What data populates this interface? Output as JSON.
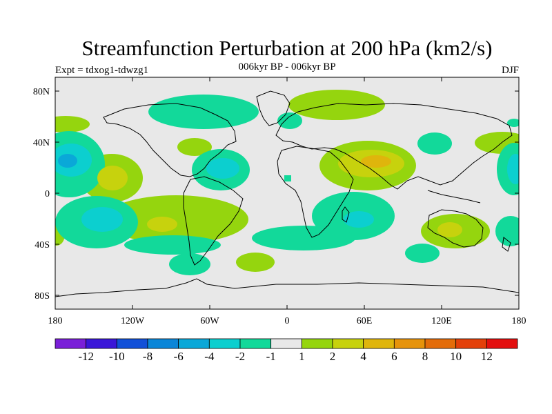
{
  "title": "Streamfunction Perturbation at 200 hPa (km2/s)",
  "subtitle": "006kyr BP - 006kyr BP",
  "left_label": "Expt = tdxog1-tdwzg1",
  "right_label": "DJF",
  "axes": {
    "lat_ticks": [
      "80N",
      "40N",
      "0",
      "40S",
      "80S"
    ],
    "lon_ticks": [
      "180",
      "120W",
      "60W",
      "0",
      "60E",
      "120E",
      "180"
    ]
  },
  "colorbar": {
    "colors": [
      "#7a1fd8",
      "#3a16d8",
      "#1150d8",
      "#0a86d8",
      "#0aa8d8",
      "#0ccfcf",
      "#12d99a",
      "#e8e8e8",
      "#95d50e",
      "#c7d20d",
      "#dfb50c",
      "#e6930b",
      "#e36c0a",
      "#e3400a",
      "#e30f0f"
    ],
    "labels": [
      "-12",
      "-10",
      "-8",
      "-6",
      "-4",
      "-2",
      "-1",
      "1",
      "2",
      "4",
      "6",
      "8",
      "10",
      "12"
    ]
  },
  "map_colors": {
    "background": "#e8e8e8",
    "land_outline": "#000000"
  }
}
